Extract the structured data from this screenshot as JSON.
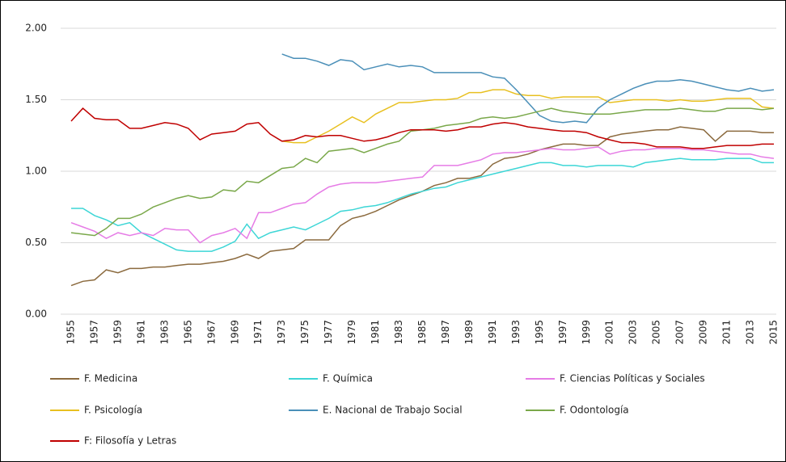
{
  "chart_data": {
    "type": "line",
    "x": [
      1955,
      1956,
      1957,
      1958,
      1959,
      1960,
      1961,
      1962,
      1963,
      1964,
      1965,
      1966,
      1967,
      1968,
      1969,
      1970,
      1971,
      1972,
      1973,
      1974,
      1975,
      1976,
      1977,
      1978,
      1979,
      1980,
      1981,
      1982,
      1983,
      1984,
      1985,
      1986,
      1987,
      1988,
      1989,
      1990,
      1991,
      1992,
      1993,
      1994,
      1995,
      1996,
      1997,
      1998,
      1999,
      2000,
      2001,
      2002,
      2003,
      2004,
      2005,
      2006,
      2007,
      2008,
      2009,
      2010,
      2011,
      2012,
      2013,
      2014,
      2015
    ],
    "xlim": [
      1955,
      2015
    ],
    "xticks": [
      1955,
      1957,
      1959,
      1961,
      1963,
      1965,
      1967,
      1969,
      1971,
      1973,
      1975,
      1977,
      1979,
      1981,
      1983,
      1985,
      1987,
      1989,
      1991,
      1993,
      1995,
      1997,
      1999,
      2001,
      2003,
      2005,
      2007,
      2009,
      2011,
      2013,
      2015
    ],
    "ylim": [
      0,
      2
    ],
    "yticks": [
      {
        "value": 0,
        "label": "0.00"
      },
      {
        "value": 0.5,
        "label": "0.50"
      },
      {
        "value": 1,
        "label": "1.00"
      },
      {
        "value": 1.5,
        "label": "1.50"
      },
      {
        "value": 2,
        "label": "2.00"
      }
    ],
    "grid": true,
    "legend": "bottom",
    "series": [
      {
        "name": "F. Medicina",
        "color": "#8b6a3e",
        "values": [
          0.2,
          0.23,
          0.24,
          0.31,
          0.29,
          0.32,
          0.32,
          0.33,
          0.33,
          0.34,
          0.35,
          0.35,
          0.36,
          0.37,
          0.39,
          0.42,
          0.39,
          0.44,
          0.45,
          0.46,
          0.52,
          0.52,
          0.52,
          0.62,
          0.67,
          0.69,
          0.72,
          0.76,
          0.8,
          0.83,
          0.86,
          0.9,
          0.92,
          0.95,
          0.95,
          0.97,
          1.05,
          1.09,
          1.1,
          1.12,
          1.15,
          1.17,
          1.19,
          1.19,
          1.18,
          1.18,
          1.24,
          1.26,
          1.27,
          1.28,
          1.29,
          1.29,
          1.31,
          1.3,
          1.29,
          1.21,
          1.28,
          1.28,
          1.28,
          1.27,
          1.27
        ]
      },
      {
        "name": "F. Química",
        "color": "#3dd6d6",
        "values": [
          0.74,
          0.74,
          0.69,
          0.66,
          0.62,
          0.64,
          0.57,
          0.53,
          0.49,
          0.45,
          0.44,
          0.44,
          0.44,
          0.47,
          0.51,
          0.63,
          0.53,
          0.57,
          0.59,
          0.61,
          0.59,
          0.63,
          0.67,
          0.72,
          0.73,
          0.75,
          0.76,
          0.78,
          0.81,
          0.84,
          0.86,
          0.88,
          0.89,
          0.92,
          0.94,
          0.96,
          0.98,
          1.0,
          1.02,
          1.04,
          1.06,
          1.06,
          1.04,
          1.04,
          1.03,
          1.04,
          1.04,
          1.04,
          1.03,
          1.06,
          1.07,
          1.08,
          1.09,
          1.08,
          1.08,
          1.08,
          1.09,
          1.09,
          1.09,
          1.06,
          1.06
        ]
      },
      {
        "name": "F. Ciencias Políticas y Sociales",
        "color": "#e67ce6",
        "values": [
          0.64,
          0.61,
          0.58,
          0.53,
          0.57,
          0.55,
          0.57,
          0.55,
          0.6,
          0.59,
          0.59,
          0.5,
          0.55,
          0.57,
          0.6,
          0.53,
          0.71,
          0.71,
          0.74,
          0.77,
          0.78,
          0.84,
          0.89,
          0.91,
          0.92,
          0.92,
          0.92,
          0.93,
          0.94,
          0.95,
          0.96,
          1.04,
          1.04,
          1.04,
          1.06,
          1.08,
          1.12,
          1.13,
          1.13,
          1.14,
          1.15,
          1.16,
          1.15,
          1.15,
          1.16,
          1.17,
          1.12,
          1.14,
          1.15,
          1.15,
          1.16,
          1.16,
          1.16,
          1.15,
          1.15,
          1.14,
          1.13,
          1.12,
          1.12,
          1.1,
          1.09
        ]
      },
      {
        "name": "F. Psicología",
        "color": "#e8c020",
        "values": [
          null,
          null,
          null,
          null,
          null,
          null,
          null,
          null,
          null,
          null,
          null,
          null,
          null,
          null,
          null,
          null,
          null,
          null,
          1.21,
          1.2,
          1.2,
          1.24,
          1.28,
          1.33,
          1.38,
          1.34,
          1.4,
          1.44,
          1.48,
          1.48,
          1.49,
          1.5,
          1.5,
          1.51,
          1.55,
          1.55,
          1.57,
          1.57,
          1.54,
          1.53,
          1.53,
          1.51,
          1.52,
          1.52,
          1.52,
          1.52,
          1.48,
          1.49,
          1.5,
          1.5,
          1.5,
          1.49,
          1.5,
          1.49,
          1.49,
          1.5,
          1.51,
          1.51,
          1.51,
          1.45,
          1.44
        ]
      },
      {
        "name": "E. Nacional de Trabajo Social",
        "color": "#4a8fb8",
        "values": [
          null,
          null,
          null,
          null,
          null,
          null,
          null,
          null,
          null,
          null,
          null,
          null,
          null,
          null,
          null,
          null,
          null,
          null,
          1.82,
          1.79,
          1.79,
          1.77,
          1.74,
          1.78,
          1.77,
          1.71,
          1.73,
          1.75,
          1.73,
          1.74,
          1.73,
          1.69,
          1.69,
          1.69,
          1.69,
          1.69,
          1.66,
          1.65,
          1.57,
          1.48,
          1.39,
          1.35,
          1.34,
          1.35,
          1.34,
          1.44,
          1.5,
          1.54,
          1.58,
          1.61,
          1.63,
          1.63,
          1.64,
          1.63,
          1.61,
          1.59,
          1.57,
          1.56,
          1.58,
          1.56,
          1.57
        ]
      },
      {
        "name": "F. Odontología",
        "color": "#7aa84a",
        "values": [
          0.57,
          0.56,
          0.55,
          0.6,
          0.67,
          0.67,
          0.7,
          0.75,
          0.78,
          0.81,
          0.83,
          0.81,
          0.82,
          0.87,
          0.86,
          0.93,
          0.92,
          0.97,
          1.02,
          1.03,
          1.09,
          1.06,
          1.14,
          1.15,
          1.16,
          1.13,
          1.16,
          1.19,
          1.21,
          1.28,
          1.29,
          1.3,
          1.32,
          1.33,
          1.34,
          1.37,
          1.38,
          1.37,
          1.38,
          1.4,
          1.42,
          1.44,
          1.42,
          1.41,
          1.4,
          1.4,
          1.4,
          1.41,
          1.42,
          1.43,
          1.43,
          1.43,
          1.44,
          1.43,
          1.42,
          1.42,
          1.44,
          1.44,
          1.44,
          1.43,
          1.44
        ]
      },
      {
        "name": "F: Filosofía y Letras",
        "color": "#c00000",
        "values": [
          1.35,
          1.44,
          1.37,
          1.36,
          1.36,
          1.3,
          1.3,
          1.32,
          1.34,
          1.33,
          1.3,
          1.22,
          1.26,
          1.27,
          1.28,
          1.33,
          1.34,
          1.26,
          1.21,
          1.22,
          1.25,
          1.24,
          1.25,
          1.25,
          1.23,
          1.21,
          1.22,
          1.24,
          1.27,
          1.29,
          1.29,
          1.29,
          1.28,
          1.29,
          1.31,
          1.31,
          1.33,
          1.34,
          1.33,
          1.31,
          1.3,
          1.29,
          1.28,
          1.28,
          1.27,
          1.24,
          1.22,
          1.2,
          1.2,
          1.19,
          1.17,
          1.17,
          1.17,
          1.16,
          1.16,
          1.17,
          1.18,
          1.18,
          1.18,
          1.19,
          1.19
        ]
      }
    ]
  }
}
